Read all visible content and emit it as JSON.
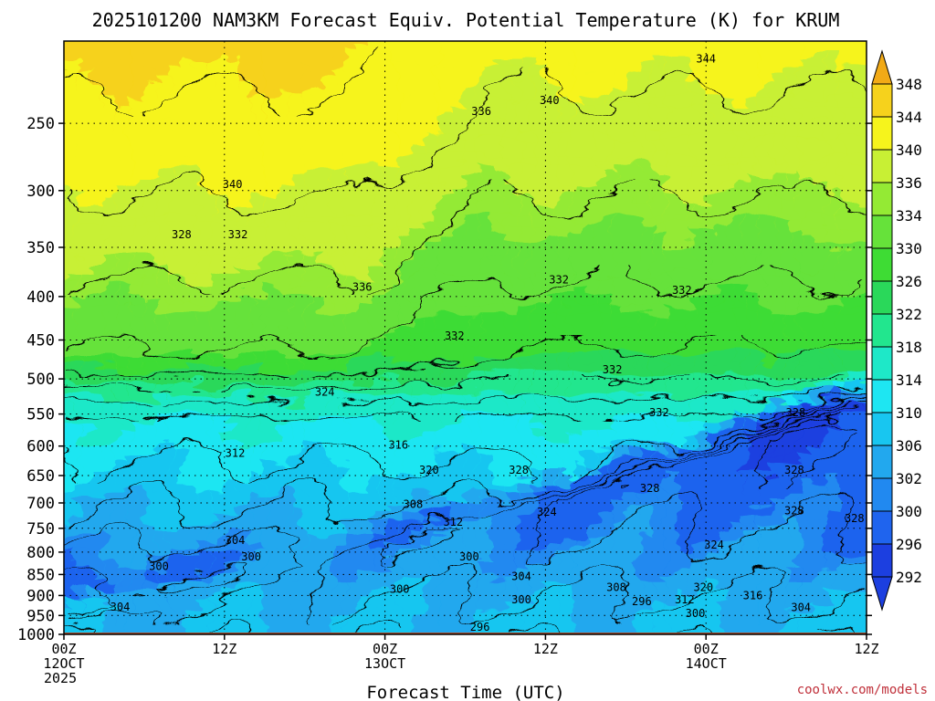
{
  "chart_data": {
    "type": "heatmap",
    "title": "2025101200 NAM3KM Forecast Equiv. Potential Temperature (K) for KRUM",
    "xlabel": "Forecast Time (UTC)",
    "credit": "coolwx.com/models",
    "x_ticks": [
      {
        "hour": 0,
        "line1": "00Z",
        "line2": "12OCT",
        "line3": "2025"
      },
      {
        "hour": 12,
        "line1": "12Z",
        "line2": "",
        "line3": ""
      },
      {
        "hour": 24,
        "line1": "00Z",
        "line2": "13OCT",
        "line3": ""
      },
      {
        "hour": 36,
        "line1": "12Z",
        "line2": "",
        "line3": ""
      },
      {
        "hour": 48,
        "line1": "00Z",
        "line2": "14OCT",
        "line3": ""
      },
      {
        "hour": 60,
        "line1": "12Z",
        "line2": "",
        "line3": ""
      }
    ],
    "xlim": [
      0,
      60
    ],
    "y_ticks": [
      250,
      300,
      350,
      400,
      450,
      500,
      550,
      600,
      650,
      700,
      750,
      800,
      850,
      900,
      950,
      1000
    ],
    "ylim": [
      1000,
      200
    ],
    "y_scale": "log-pressure",
    "surface_pressure": 1000,
    "colorbar": {
      "levels": [
        292,
        296,
        300,
        302,
        306,
        310,
        314,
        318,
        322,
        326,
        330,
        334,
        336,
        340,
        344,
        348
      ],
      "colors": [
        "#1c3fe0",
        "#1f64ee",
        "#2189f0",
        "#22a8ee",
        "#18c6f0",
        "#1ee6f2",
        "#1ee8c8",
        "#22e68e",
        "#2ad85a",
        "#3edc34",
        "#66e23a",
        "#94ea34",
        "#c8f034",
        "#f6f41c",
        "#f6d21c",
        "#f2aa16"
      ]
    },
    "contour_labels": [
      {
        "hour": 48.0,
        "p": 210,
        "text": "344"
      },
      {
        "hour": 36.3,
        "p": 235,
        "text": "340"
      },
      {
        "hour": 31.2,
        "p": 242,
        "text": "336"
      },
      {
        "hour": 12.6,
        "p": 295,
        "text": "340"
      },
      {
        "hour": 8.8,
        "p": 338,
        "text": "328"
      },
      {
        "hour": 13.0,
        "p": 338,
        "text": "332"
      },
      {
        "hour": 22.3,
        "p": 390,
        "text": "336"
      },
      {
        "hour": 37.0,
        "p": 382,
        "text": "332"
      },
      {
        "hour": 46.2,
        "p": 393,
        "text": "332"
      },
      {
        "hour": 29.2,
        "p": 445,
        "text": "332"
      },
      {
        "hour": 41.0,
        "p": 488,
        "text": "332"
      },
      {
        "hour": 19.5,
        "p": 518,
        "text": "324"
      },
      {
        "hour": 44.5,
        "p": 548,
        "text": "332"
      },
      {
        "hour": 54.7,
        "p": 548,
        "text": "328"
      },
      {
        "hour": 25.0,
        "p": 598,
        "text": "316"
      },
      {
        "hour": 12.8,
        "p": 612,
        "text": "312"
      },
      {
        "hour": 27.3,
        "p": 640,
        "text": "320"
      },
      {
        "hour": 34.0,
        "p": 640,
        "text": "328"
      },
      {
        "hour": 54.6,
        "p": 640,
        "text": "328"
      },
      {
        "hour": 43.8,
        "p": 673,
        "text": "328"
      },
      {
        "hour": 26.1,
        "p": 703,
        "text": "308"
      },
      {
        "hour": 29.1,
        "p": 737,
        "text": "312"
      },
      {
        "hour": 36.1,
        "p": 718,
        "text": "324"
      },
      {
        "hour": 54.6,
        "p": 715,
        "text": "328"
      },
      {
        "hour": 59.1,
        "p": 730,
        "text": "328"
      },
      {
        "hour": 12.8,
        "p": 775,
        "text": "304"
      },
      {
        "hour": 48.6,
        "p": 785,
        "text": "324"
      },
      {
        "hour": 14.0,
        "p": 810,
        "text": "300"
      },
      {
        "hour": 7.1,
        "p": 832,
        "text": "300"
      },
      {
        "hour": 30.3,
        "p": 810,
        "text": "300"
      },
      {
        "hour": 34.2,
        "p": 855,
        "text": "304"
      },
      {
        "hour": 41.3,
        "p": 880,
        "text": "308"
      },
      {
        "hour": 47.8,
        "p": 880,
        "text": "320"
      },
      {
        "hour": 51.5,
        "p": 900,
        "text": "316"
      },
      {
        "hour": 25.1,
        "p": 885,
        "text": "300"
      },
      {
        "hour": 34.2,
        "p": 910,
        "text": "300"
      },
      {
        "hour": 43.2,
        "p": 915,
        "text": "296"
      },
      {
        "hour": 46.4,
        "p": 910,
        "text": "312"
      },
      {
        "hour": 4.2,
        "p": 928,
        "text": "304"
      },
      {
        "hour": 47.2,
        "p": 945,
        "text": "300"
      },
      {
        "hour": 55.1,
        "p": 930,
        "text": "304"
      },
      {
        "hour": 31.1,
        "p": 980,
        "text": "296"
      }
    ]
  }
}
